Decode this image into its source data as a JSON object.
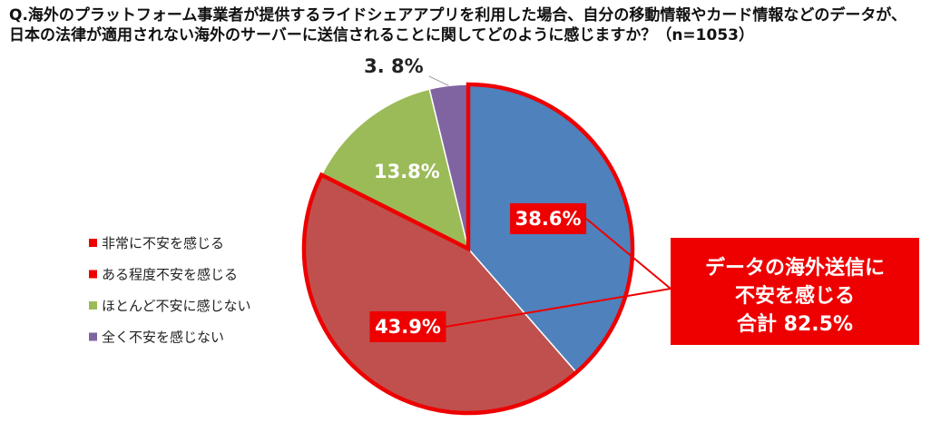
{
  "question": {
    "line1": "Q.海外のプラットフォーム事業者が提供するライドシェアアプリを利用した場合、自分の移動情報やカード情報などのデータが、",
    "line2": "日本の法律が適用されない海外のサーバーに送信されることに関してどのように感じますか？（n=1053）"
  },
  "chart_data": {
    "type": "pie",
    "title": "",
    "n": 1053,
    "start_angle_deg": 0,
    "direction": "clockwise",
    "slices": [
      {
        "label": "非常に不安を感じる",
        "value": 38.6,
        "value_label": "38.6%",
        "color": "#4F81BD",
        "highlighted": true
      },
      {
        "label": "ある程度不安を感じる",
        "value": 43.9,
        "value_label": "43.9%",
        "color": "#C0504D",
        "highlighted": true
      },
      {
        "label": "ほとんど不安に感じない",
        "value": 13.8,
        "value_label": "13.8%",
        "color": "#9BBB59",
        "highlighted": false
      },
      {
        "label": "全く不安を感じない",
        "value": 3.8,
        "value_label": "3. 8%",
        "color": "#8064A2",
        "highlighted": false
      }
    ],
    "legend_position": "left",
    "highlight_color": "#EE0000",
    "callout": {
      "lines": [
        "データの海外送信に",
        "不安を感じる",
        "合計 82.5%"
      ],
      "total": 82.5
    }
  },
  "legend": {
    "items": [
      {
        "label": "非常に不安を感じる",
        "marker_color": "#EE0000"
      },
      {
        "label": "ある程度不安を感じる",
        "marker_color": "#EE0000"
      },
      {
        "label": "ほとんど不安に感じない",
        "marker_color": "#9BBB59"
      },
      {
        "label": "全く不安を感じない",
        "marker_color": "#8064A2"
      }
    ]
  }
}
